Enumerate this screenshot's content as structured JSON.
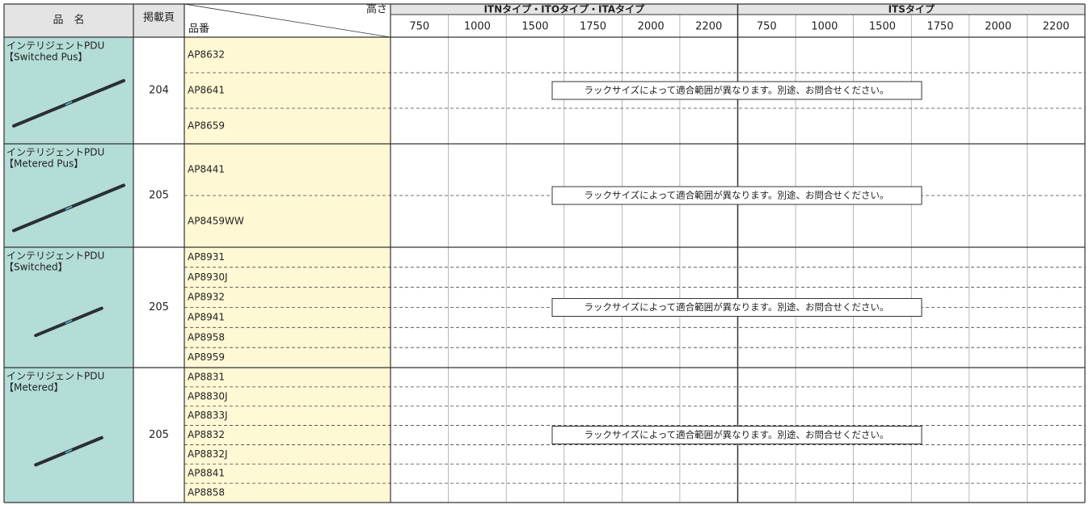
{
  "header": {
    "product_name": "品　名",
    "page": "掲載頁",
    "height": "高さ",
    "part_number": "品番",
    "group1": "ITNタイプ・ITOタイプ・ITAタイプ",
    "group2": "ITSタイプ",
    "heights1": [
      750,
      1000,
      1500,
      1750,
      2000,
      2200
    ],
    "heights2": [
      750,
      1000,
      1500,
      1750,
      2000,
      2200
    ]
  },
  "groups": [
    {
      "name": "インテリジェントPDU",
      "variant": "【Switched Pus】",
      "page": 204,
      "parts": [
        "AP8632",
        "AP8641",
        "AP8659"
      ],
      "note": "ラックサイズによって適合範囲が異なります。別途、お問合せください。"
    },
    {
      "name": "インテリジェントPDU",
      "variant": "【Metered Pus】",
      "page": 205,
      "parts": [
        "AP8441",
        "AP8459WW"
      ],
      "note": "ラックサイズによって適合範囲が異なります。別途、お問合せください。"
    },
    {
      "name": "インテリジェントPDU",
      "variant": "【Switched】",
      "page": 205,
      "parts": [
        "AP8931",
        "AP8930J",
        "AP8932",
        "AP8941",
        "AP8958",
        "AP8959"
      ],
      "note": "ラックサイズによって適合範囲が異なります。別途、お問合せください。"
    },
    {
      "name": "インテリジェントPDU",
      "variant": "【Metered】",
      "page": 205,
      "parts": [
        "AP8831",
        "AP8830J",
        "AP8833J",
        "AP8832",
        "AP8832J",
        "AP8841",
        "AP8858"
      ],
      "note": "ラックサイズによって適合範囲が異なります。別途、お問合せください。"
    }
  ]
}
